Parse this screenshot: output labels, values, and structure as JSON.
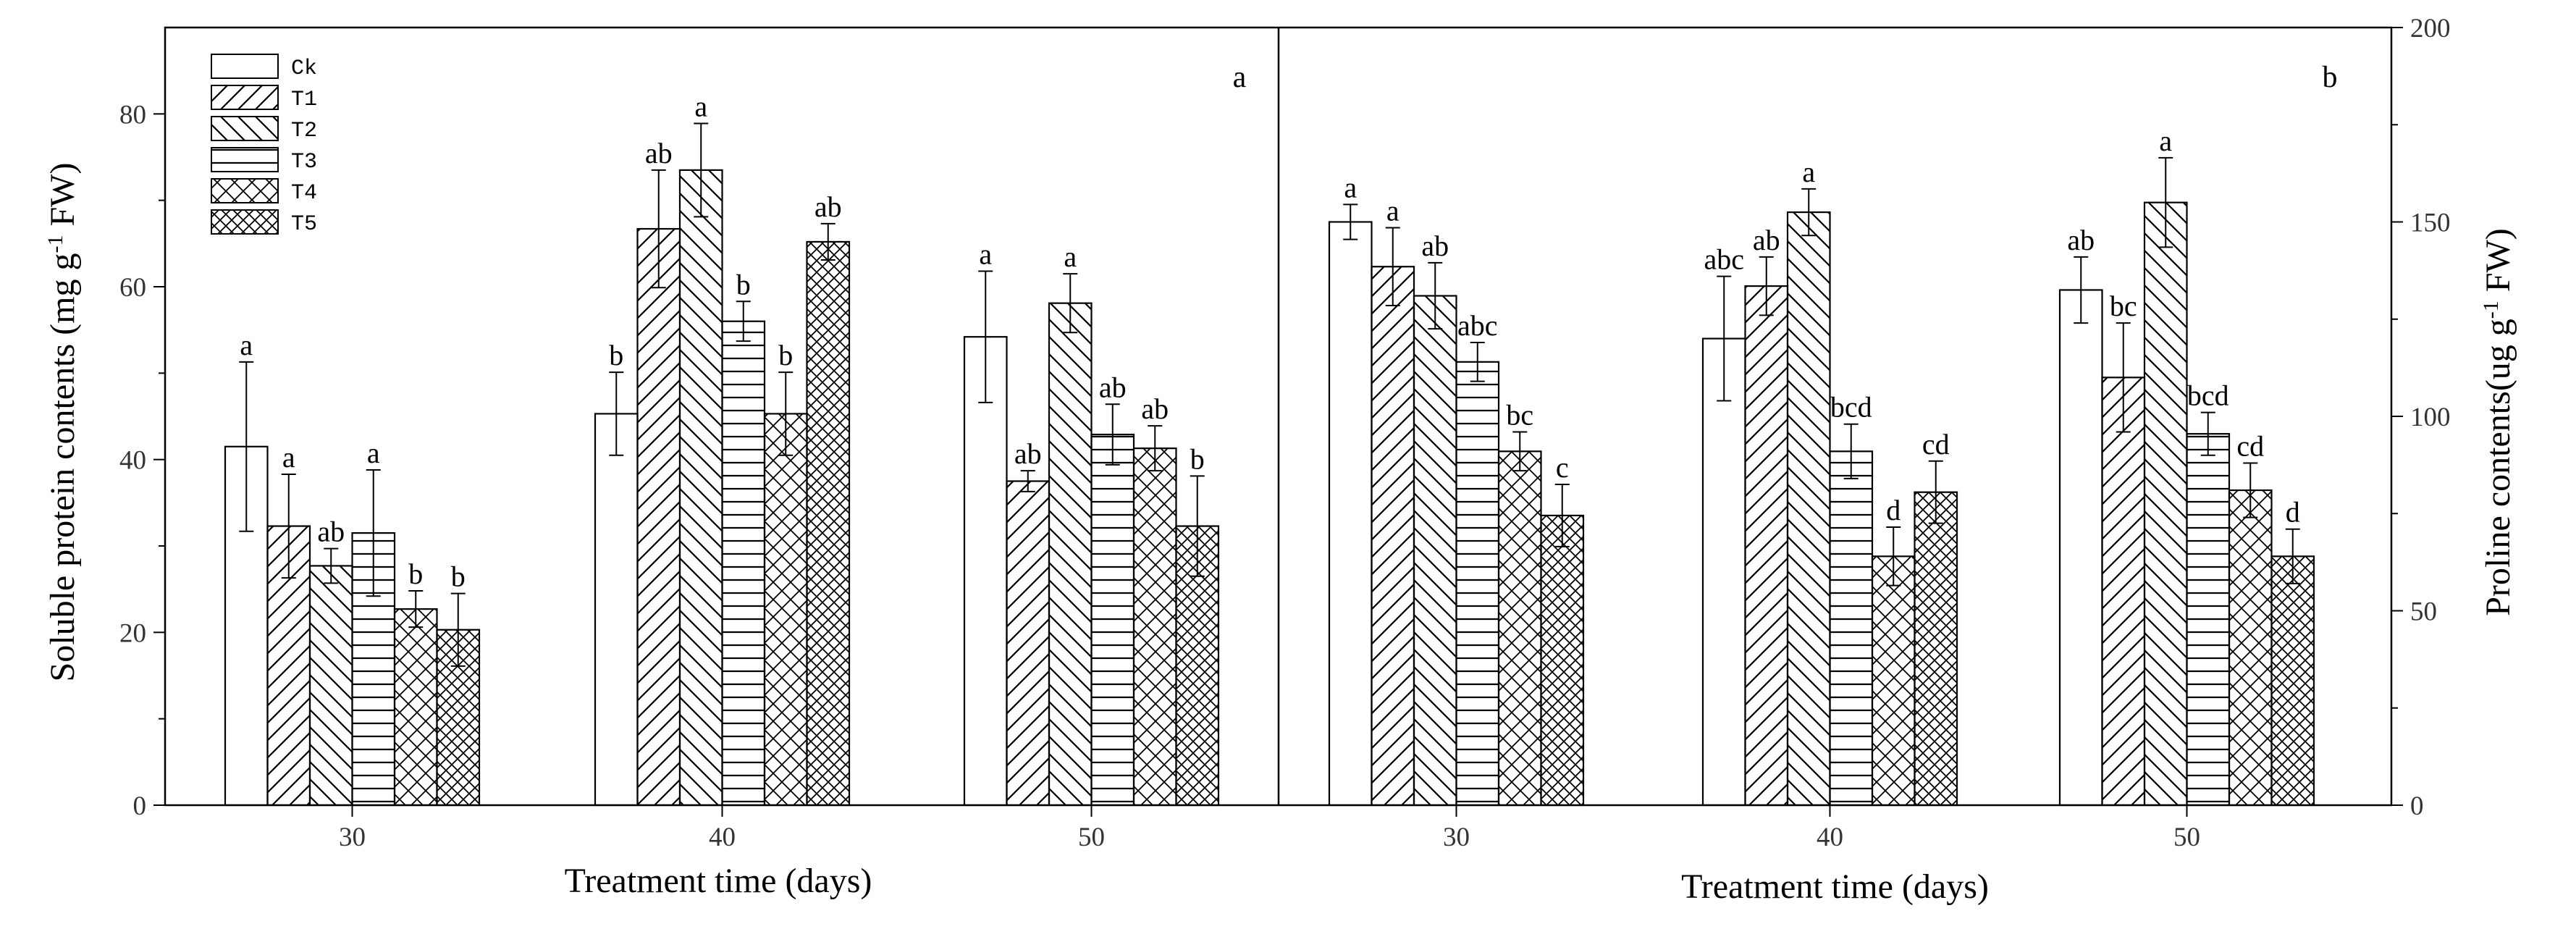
{
  "chart_data": [
    {
      "type": "bar",
      "panel_label": "a",
      "title": "",
      "xlabel": "Treatment time (days)",
      "ylabel": "Soluble protein contents (mg g-1 FW)",
      "ylabel_parts": {
        "pre": "Soluble protein contents (mg g",
        "sup": "-1",
        "post": " FW)"
      },
      "y_axis_side": "left",
      "ylim": [
        0,
        90
      ],
      "yticks": [
        0,
        20,
        40,
        60,
        80
      ],
      "grid": false,
      "legend_position": "top-left",
      "categories": [
        "30",
        "40",
        "50"
      ],
      "series": [
        {
          "name": "Ck",
          "pattern": "none",
          "values": [
            41.5,
            45.3,
            54.2
          ],
          "errors": [
            9.8,
            4.8,
            7.6
          ],
          "labels": [
            "a",
            "b",
            "a"
          ]
        },
        {
          "name": "T1",
          "pattern": "diag-up",
          "values": [
            32.3,
            66.7,
            37.5
          ],
          "errors": [
            6.0,
            6.8,
            1.2
          ],
          "labels": [
            "a",
            "ab",
            "ab"
          ]
        },
        {
          "name": "T2",
          "pattern": "diag-down",
          "values": [
            27.7,
            73.5,
            58.1
          ],
          "errors": [
            2.0,
            5.4,
            3.4
          ],
          "labels": [
            "ab",
            "a",
            "a"
          ]
        },
        {
          "name": "T3",
          "pattern": "horizontal",
          "values": [
            31.5,
            56.0,
            42.9
          ],
          "errors": [
            7.3,
            2.3,
            3.5
          ],
          "labels": [
            "a",
            "b",
            "ab"
          ]
        },
        {
          "name": "T4",
          "pattern": "cross",
          "values": [
            22.7,
            45.3,
            41.3
          ],
          "errors": [
            2.1,
            4.8,
            2.6
          ],
          "labels": [
            "b",
            "b",
            "ab"
          ]
        },
        {
          "name": "T5",
          "pattern": "dense-cross",
          "values": [
            20.3,
            65.2,
            32.3
          ],
          "errors": [
            4.2,
            2.1,
            5.8
          ],
          "labels": [
            "b",
            "ab",
            "b"
          ]
        }
      ]
    },
    {
      "type": "bar",
      "panel_label": "b",
      "title": "",
      "xlabel": "Treatment time (days)",
      "ylabel": "Proline contents(ug g-1 FW)",
      "ylabel_parts": {
        "pre": "Proline contents(ug g",
        "sup": "-1",
        "post": " FW)"
      },
      "y_axis_side": "right",
      "ylim": [
        0,
        200
      ],
      "yticks": [
        0,
        50,
        100,
        150,
        200
      ],
      "grid": false,
      "categories": [
        "30",
        "40",
        "50"
      ],
      "series": [
        {
          "name": "Ck",
          "pattern": "none",
          "values": [
            150.0,
            120.0,
            132.5
          ],
          "errors": [
            4.5,
            16.0,
            8.5
          ],
          "labels": [
            "a",
            "abc",
            "ab"
          ]
        },
        {
          "name": "T1",
          "pattern": "diag-up",
          "values": [
            138.5,
            133.5,
            110.0
          ],
          "errors": [
            10.0,
            7.5,
            14.0
          ],
          "labels": [
            "a",
            "ab",
            "bc"
          ]
        },
        {
          "name": "T2",
          "pattern": "diag-down",
          "values": [
            131.0,
            152.5,
            155.0
          ],
          "errors": [
            8.5,
            6.0,
            11.5
          ],
          "labels": [
            "ab",
            "a",
            "a"
          ]
        },
        {
          "name": "T3",
          "pattern": "horizontal",
          "values": [
            114.0,
            91.0,
            95.5
          ],
          "errors": [
            5.0,
            7.0,
            5.5
          ],
          "labels": [
            "abc",
            "bcd",
            "bcd"
          ]
        },
        {
          "name": "T4",
          "pattern": "cross",
          "values": [
            91.0,
            64.0,
            81.0
          ],
          "errors": [
            5.0,
            7.5,
            7.0
          ],
          "labels": [
            "bc",
            "d",
            "cd"
          ]
        },
        {
          "name": "T5",
          "pattern": "dense-cross",
          "values": [
            74.5,
            80.5,
            64.0
          ],
          "errors": [
            8.0,
            8.0,
            7.0
          ],
          "labels": [
            "c",
            "cd",
            "d"
          ]
        }
      ]
    }
  ]
}
